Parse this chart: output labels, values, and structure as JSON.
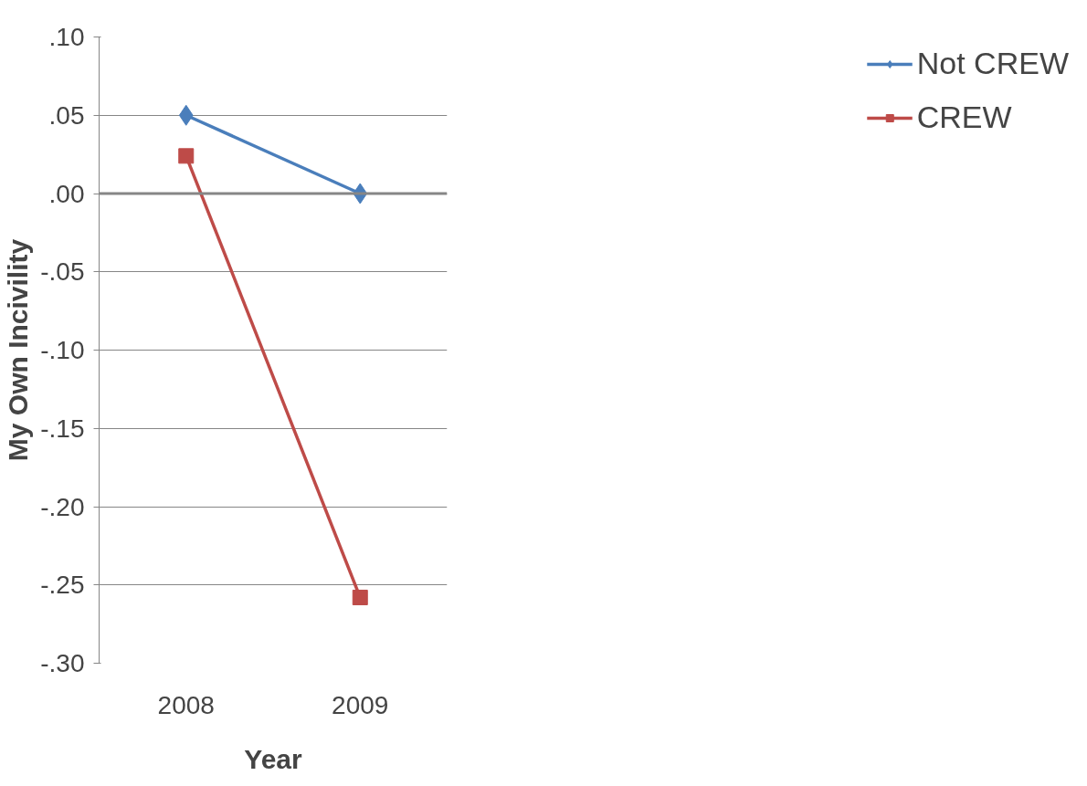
{
  "chart_data": {
    "type": "line",
    "xlabel": "Year",
    "ylabel": "My Own Incivility",
    "categories": [
      "2008",
      "2009"
    ],
    "series": [
      {
        "name": "Not CREW",
        "color": "#4a7ebb",
        "values": [
          0.05,
          0.0
        ],
        "marker": "diamond"
      },
      {
        "name": "CREW",
        "color": "#be4b48",
        "values": [
          0.024,
          -0.258
        ],
        "marker": "square"
      }
    ],
    "ylim": [
      -0.3,
      0.1
    ],
    "yticks": [
      {
        "value": 0.1,
        "label": ".10"
      },
      {
        "value": 0.05,
        "label": ".05"
      },
      {
        "value": 0,
        "label": ".00"
      },
      {
        "value": -0.05,
        "label": "-.05"
      },
      {
        "value": -0.1,
        "label": "-.10"
      },
      {
        "value": -0.15,
        "label": "-.15"
      },
      {
        "value": -0.2,
        "label": "-.20"
      },
      {
        "value": -0.25,
        "label": "-.25"
      },
      {
        "value": -0.3,
        "label": "-.30"
      }
    ],
    "grid": "y",
    "legend": "right",
    "line_style": "solid",
    "ref_lines": [
      {
        "axis": "y",
        "value": 0,
        "color": "#868686"
      }
    ]
  }
}
